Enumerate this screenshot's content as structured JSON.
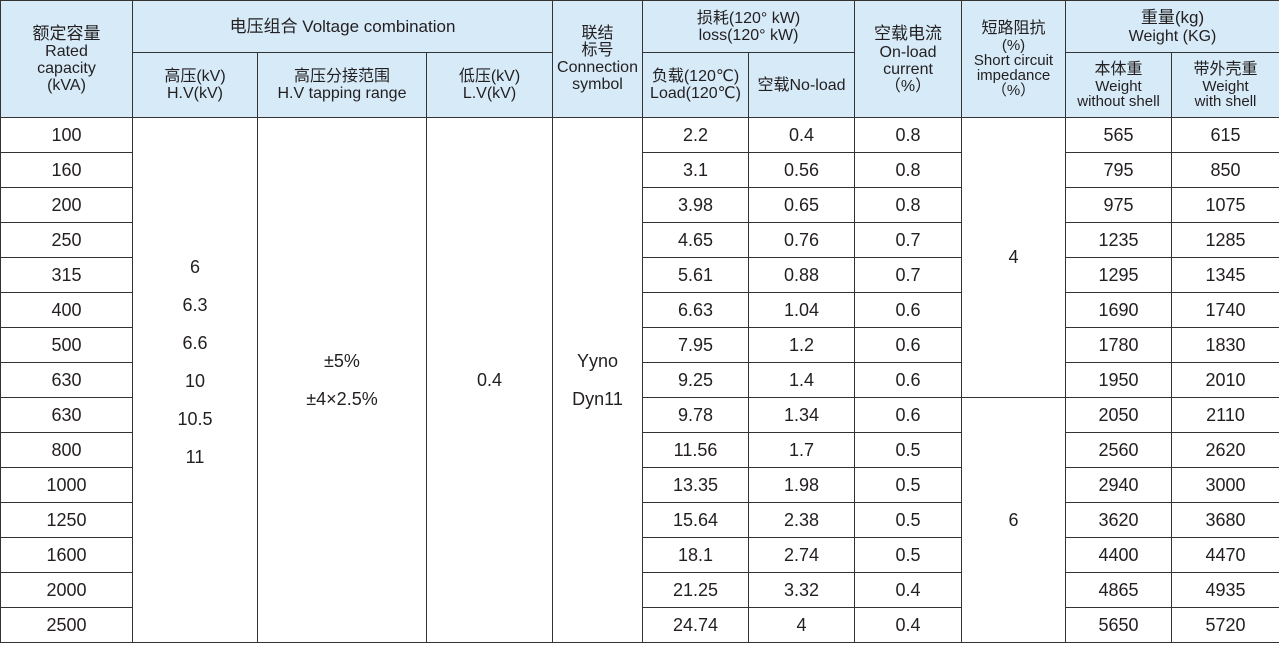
{
  "header": {
    "rated_capacity": [
      "额定容量",
      "Rated",
      "capacity",
      "(kVA)"
    ],
    "voltage_combination": "电压组合 Voltage combination",
    "hv": [
      "高压(kV)",
      "H.V(kV)"
    ],
    "hv_tapping": [
      "高压分接范围",
      "H.V tapping range"
    ],
    "lv": [
      "低压(kV)",
      "L.V(kV)"
    ],
    "connection": [
      "联结",
      "标号",
      "Connection",
      "symbol"
    ],
    "loss": [
      "损耗(120°  kW)",
      "loss(120°  kW)"
    ],
    "load_loss": [
      "负载(120℃)",
      "Load(120℃)"
    ],
    "no_load_loss": "空载No-load",
    "no_load_current": [
      "空载电流",
      "On-load",
      "current",
      "（%）"
    ],
    "impedance": [
      "短路阻抗",
      "(%)",
      "Short circuit",
      "impedance",
      "（%）"
    ],
    "weight": [
      "重量(kg)",
      "Weight (KG)"
    ],
    "weight_body": [
      "本体重",
      "Weight",
      "without shell"
    ],
    "weight_shell": [
      "带外壳重",
      "Weight",
      "with shell"
    ]
  },
  "merged": {
    "hv_values": [
      "6",
      "6.3",
      "6.6",
      "10",
      "10.5",
      "11"
    ],
    "tapping_values": [
      "±5%",
      "±4×2.5%"
    ],
    "lv_value": "0.4",
    "connection_values": [
      "Yyno",
      "Dyn11"
    ],
    "impedance_group1": "4",
    "impedance_group2": "6"
  },
  "rows": [
    {
      "capacity": "100",
      "load": "2.2",
      "noload": "0.4",
      "current": "0.8",
      "w_body": "565",
      "w_shell": "615"
    },
    {
      "capacity": "160",
      "load": "3.1",
      "noload": "0.56",
      "current": "0.8",
      "w_body": "795",
      "w_shell": "850"
    },
    {
      "capacity": "200",
      "load": "3.98",
      "noload": "0.65",
      "current": "0.8",
      "w_body": "975",
      "w_shell": "1075"
    },
    {
      "capacity": "250",
      "load": "4.65",
      "noload": "0.76",
      "current": "0.7",
      "w_body": "1235",
      "w_shell": "1285"
    },
    {
      "capacity": "315",
      "load": "5.61",
      "noload": "0.88",
      "current": "0.7",
      "w_body": "1295",
      "w_shell": "1345"
    },
    {
      "capacity": "400",
      "load": "6.63",
      "noload": "1.04",
      "current": "0.6",
      "w_body": "1690",
      "w_shell": "1740"
    },
    {
      "capacity": "500",
      "load": "7.95",
      "noload": "1.2",
      "current": "0.6",
      "w_body": "1780",
      "w_shell": "1830"
    },
    {
      "capacity": "630",
      "load": "9.25",
      "noload": "1.4",
      "current": "0.6",
      "w_body": "1950",
      "w_shell": "2010"
    },
    {
      "capacity": "630",
      "load": "9.78",
      "noload": "1.34",
      "current": "0.6",
      "w_body": "2050",
      "w_shell": "2110"
    },
    {
      "capacity": "800",
      "load": "11.56",
      "noload": "1.7",
      "current": "0.5",
      "w_body": "2560",
      "w_shell": "2620"
    },
    {
      "capacity": "1000",
      "load": "13.35",
      "noload": "1.98",
      "current": "0.5",
      "w_body": "2940",
      "w_shell": "3000"
    },
    {
      "capacity": "1250",
      "load": "15.64",
      "noload": "2.38",
      "current": "0.5",
      "w_body": "3620",
      "w_shell": "3680"
    },
    {
      "capacity": "1600",
      "load": "18.1",
      "noload": "2.74",
      "current": "0.5",
      "w_body": "4400",
      "w_shell": "4470"
    },
    {
      "capacity": "2000",
      "load": "21.25",
      "noload": "3.32",
      "current": "0.4",
      "w_body": "4865",
      "w_shell": "4935"
    },
    {
      "capacity": "2500",
      "load": "24.74",
      "noload": "4",
      "current": "0.4",
      "w_body": "5650",
      "w_shell": "5720"
    }
  ]
}
